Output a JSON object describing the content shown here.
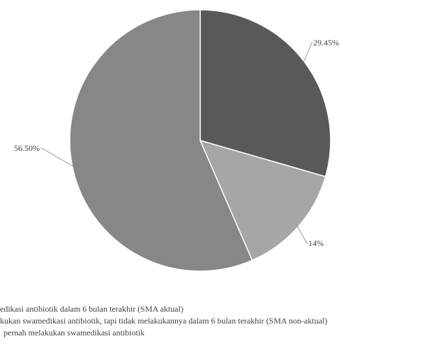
{
  "chart_data": {
    "type": "pie",
    "categories": [
      "…dikasi antibiotik dalam 6 bulan terakhir (SMA aktual)",
      "…kukan swamedikasi antibiotik, tapi tidak melakukannya dalam 6 bulan terakhir (SMA non-aktual)",
      "… pernah melakukan swamedikasi antibiotik"
    ],
    "values": [
      29.45,
      14,
      56.5
    ],
    "labels": [
      "29.45%",
      "14%",
      "56.50%"
    ],
    "colors": [
      "#595959",
      "#a6a6a6",
      "#878787"
    ],
    "legend_position": "bottom"
  },
  "legend": {
    "items": [
      {
        "text": "edikasi antibiotik dalam 6 bulan terakhir (SMA aktual)",
        "color": "#595959"
      },
      {
        "text": "kukan swamedikasi antibiotik, tapi tidak melakukannya dalam 6 bulan terakhir (SMA non-aktual)",
        "color": "#a6a6a6"
      },
      {
        "text": "pernah melakukan swamedikasi antibiotik",
        "color": "#878787"
      }
    ]
  }
}
